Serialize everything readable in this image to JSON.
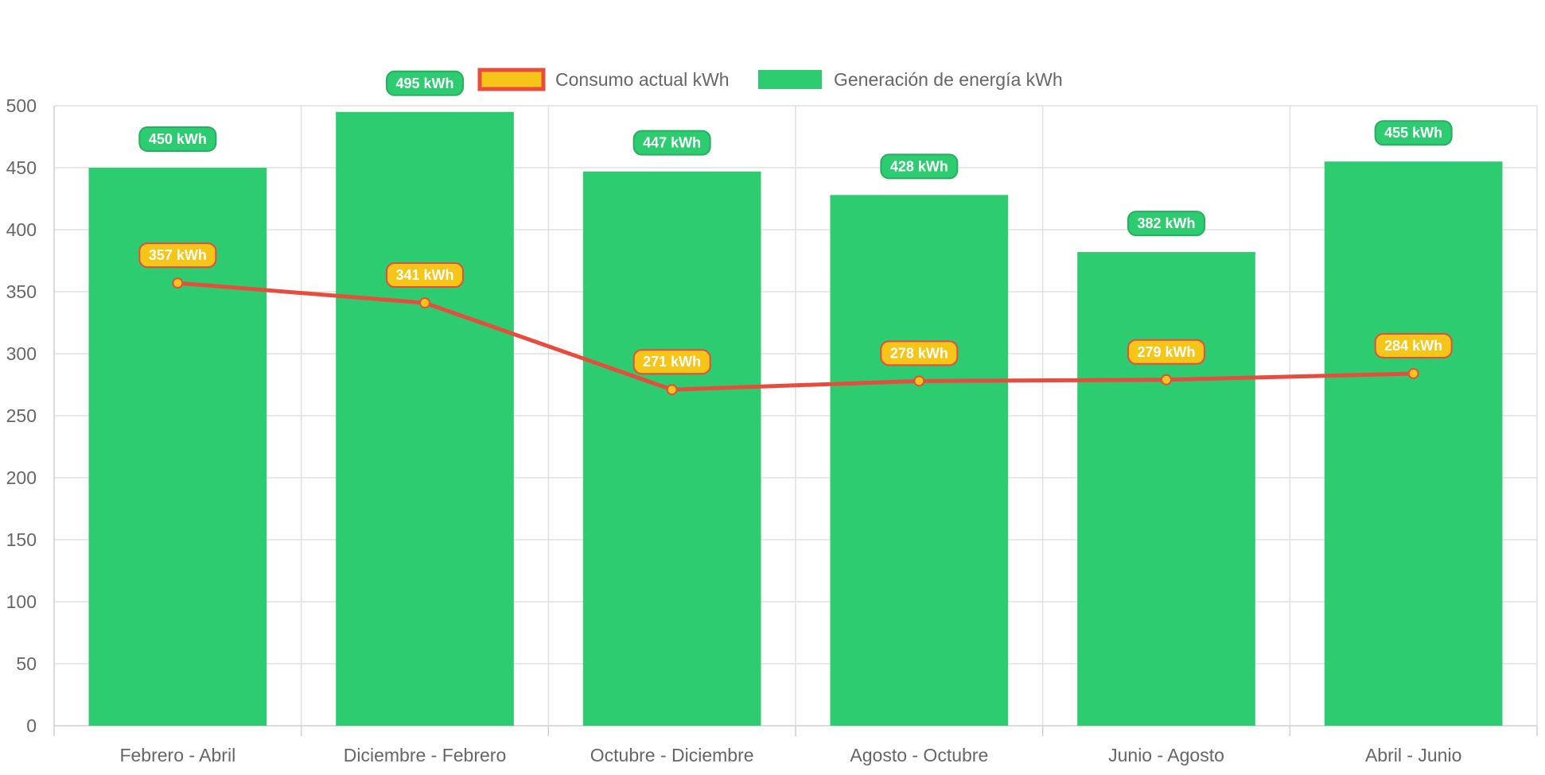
{
  "chart_data": {
    "type": "bar",
    "categories": [
      "Febrero - Abril",
      "Diciembre - Febrero",
      "Octubre - Diciembre",
      "Agosto - Octubre",
      "Junio - Agosto",
      "Abril - Junio"
    ],
    "series": [
      {
        "name": "Consumo actual kWh",
        "type": "line",
        "values": [
          357,
          341,
          271,
          278,
          279,
          284
        ],
        "color": "#e74c3c",
        "point_color": "#f5c518"
      },
      {
        "name": "Generación de energía kWh",
        "type": "bar",
        "values": [
          450,
          495,
          447,
          428,
          382,
          455
        ],
        "color": "#2ecc71"
      }
    ],
    "data_label_unit": "kWh",
    "ylim": [
      0,
      500
    ],
    "yticks": [
      0,
      50,
      100,
      150,
      200,
      250,
      300,
      350,
      400,
      450,
      500
    ],
    "grid": true,
    "legend_position": "top-center",
    "title": "",
    "xlabel": "",
    "ylabel": ""
  }
}
